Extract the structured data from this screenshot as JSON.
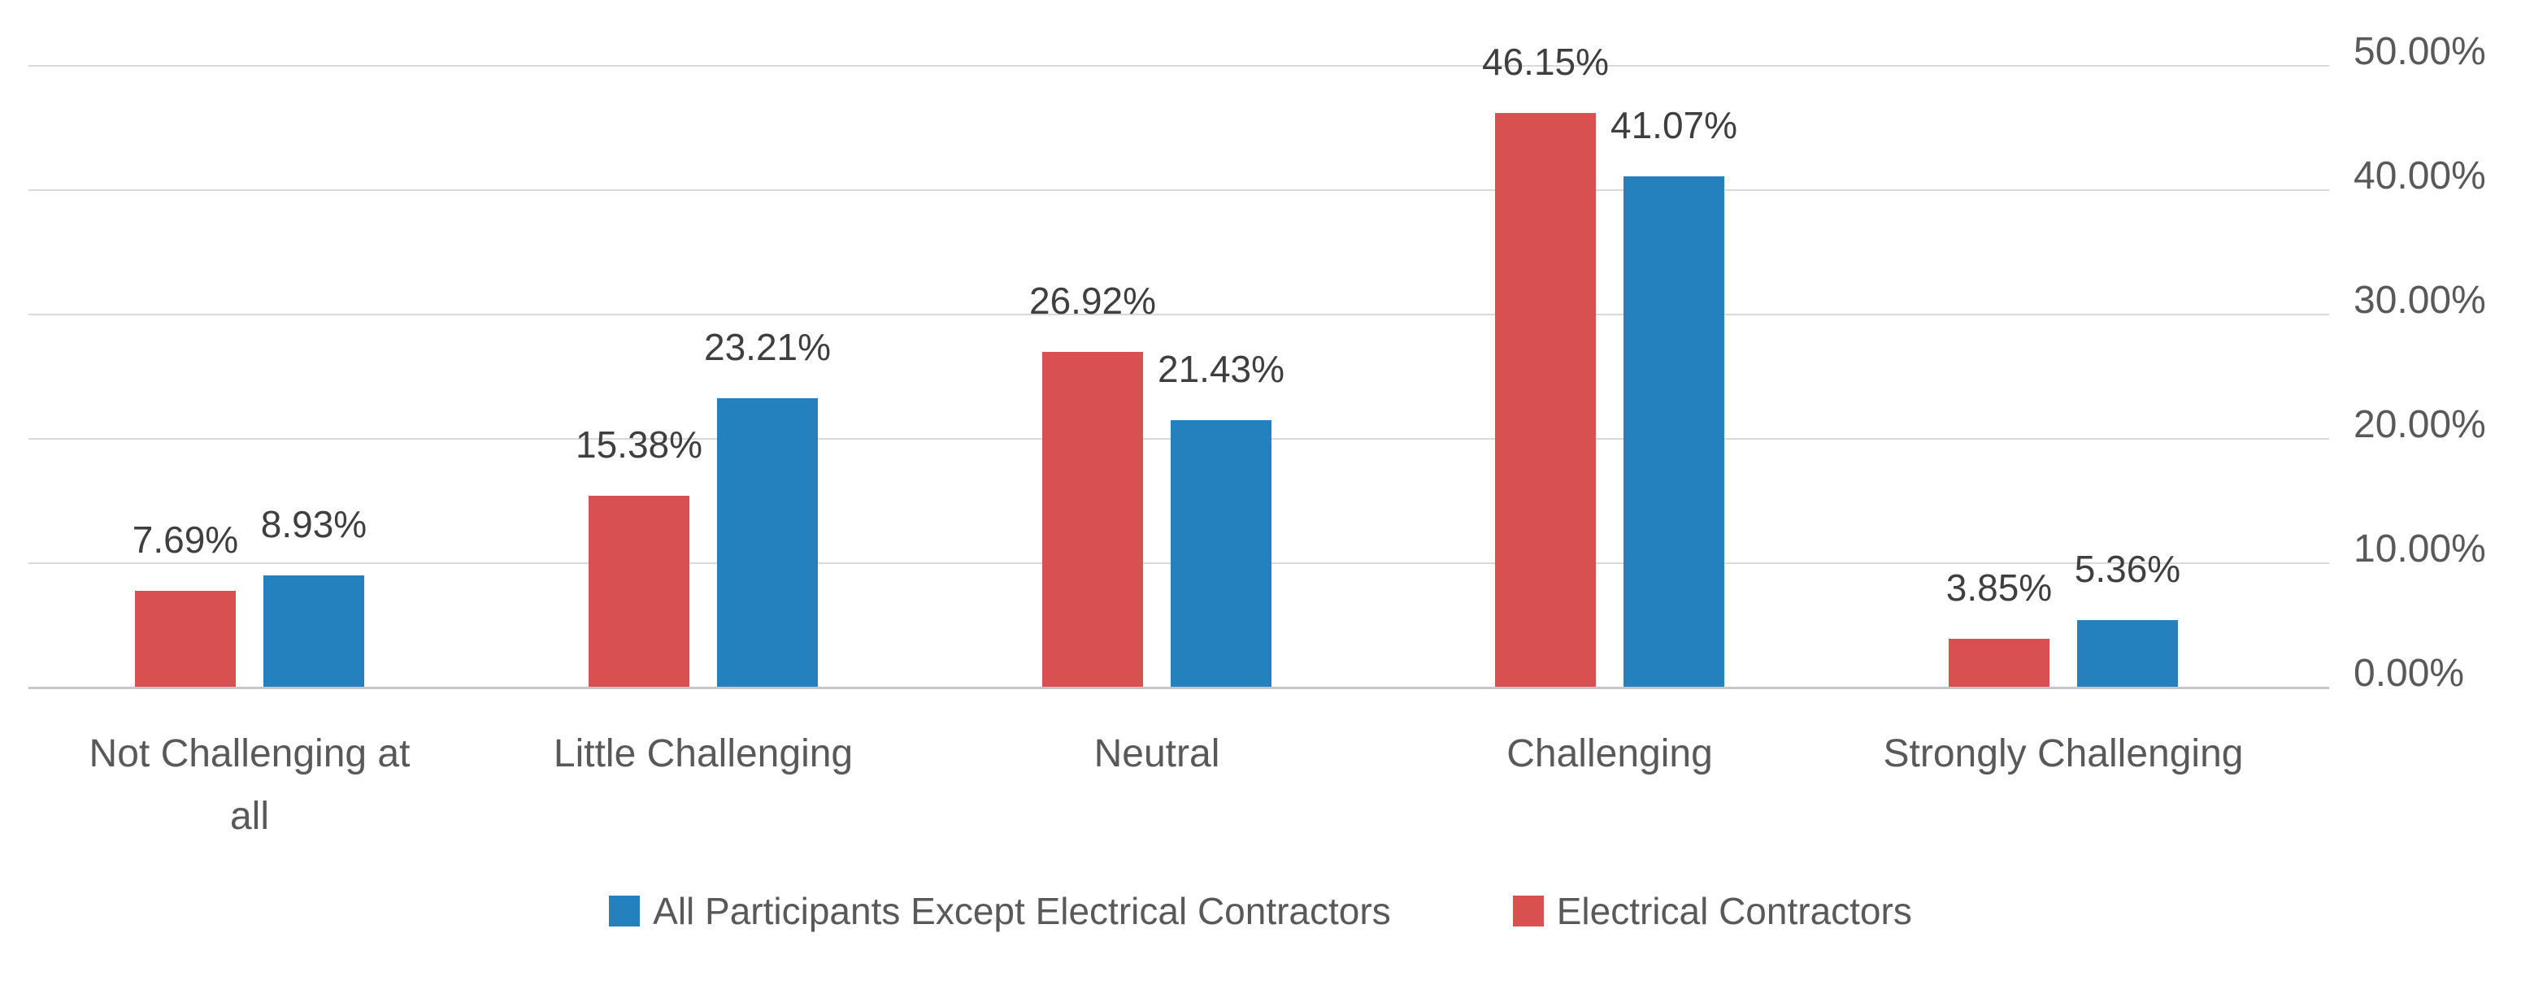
{
  "chart_data": {
    "type": "bar",
    "title": "",
    "categories": [
      "Not Challenging at all",
      "Little Challenging",
      "Neutral",
      "Challenging",
      "Strongly Challenging"
    ],
    "series": [
      {
        "name": "Electrical Contractors",
        "color": "#d85150",
        "values": [
          7.69,
          15.38,
          26.92,
          46.15,
          3.85
        ],
        "data_labels": [
          "7.69%",
          "15.38%",
          "26.92%",
          "46.15%",
          "3.85%"
        ]
      },
      {
        "name": "All Participants Except Electrical Contractors",
        "color": "#2580be",
        "values": [
          8.93,
          23.21,
          21.43,
          41.07,
          5.36
        ],
        "data_labels": [
          "8.93%",
          "23.21%",
          "21.43%",
          "41.07%",
          "5.36%"
        ]
      }
    ],
    "value_axis": {
      "side": "right",
      "min": 0,
      "max": 50,
      "tick_step": 10,
      "tick_values": [
        0,
        10,
        20,
        30,
        40,
        50
      ],
      "tick_labels": [
        "0.00%",
        "10.00%",
        "20.00%",
        "30.00%",
        "40.00%",
        "50.00%"
      ],
      "grid": true
    },
    "legend": {
      "position": "bottom",
      "items": [
        {
          "label": "All Participants Except Electrical Contractors",
          "swatch_color": "#2580be"
        },
        {
          "label": "Electrical Contractors",
          "swatch_color": "#d85150"
        }
      ]
    },
    "styles": {
      "grid_color": "#d9d9d9",
      "axis_line_color": "#c6c6c6",
      "data_label_color": "#3f3f3f",
      "axis_text_color": "#595959",
      "background": "#ffffff"
    }
  }
}
